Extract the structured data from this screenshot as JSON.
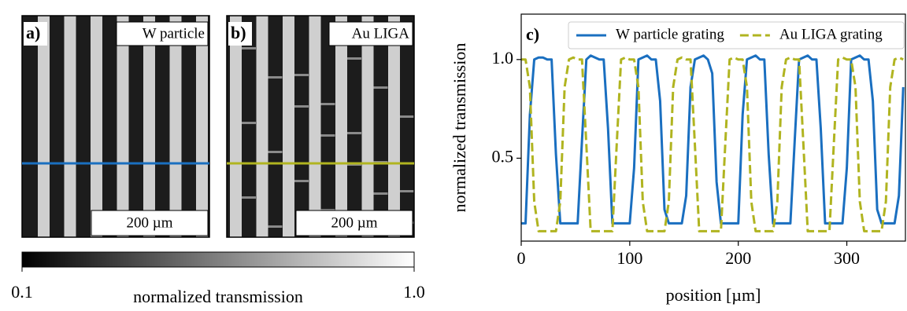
{
  "panels": [
    {
      "label": "a)",
      "name": "W particle",
      "scalebar": "200 µm"
    },
    {
      "label": "b)",
      "name": "Au LIGA",
      "scalebar": "200 µm"
    }
  ],
  "colorbar": {
    "label": "normalized transmission",
    "lim": [
      0.1,
      1
    ],
    "ticks": [
      {
        "value": 0.1,
        "label": "0.1"
      },
      {
        "value": 1,
        "label": "1.0"
      }
    ]
  },
  "chart_data": {
    "type": "line",
    "panel_label": "c)",
    "xlabel": "position [µm]",
    "ylabel": "normalized transmission",
    "xlim": [
      0,
      354
    ],
    "ylim": [
      0.08,
      1.23
    ],
    "xticks": [
      0,
      100,
      200,
      300
    ],
    "yticks": [
      0.5,
      {
        "value": 1,
        "label": "1.0"
      }
    ],
    "legend": "upper right",
    "x": [
      0,
      4,
      8,
      12,
      16,
      20,
      24,
      28,
      32,
      36,
      40,
      44,
      48,
      52,
      56,
      60,
      64,
      68,
      72,
      76,
      80,
      84,
      88,
      92,
      96,
      100,
      104,
      108,
      112,
      116,
      120,
      124,
      128,
      132,
      136,
      140,
      144,
      148,
      152,
      156,
      160,
      164,
      168,
      172,
      176,
      180,
      184,
      188,
      192,
      196,
      200,
      204,
      208,
      212,
      216,
      220,
      224,
      228,
      232,
      236,
      240,
      244,
      248,
      252,
      256,
      260,
      264,
      268,
      272,
      276,
      280,
      284,
      288,
      292,
      296,
      300,
      304,
      308,
      312,
      316,
      320,
      324,
      328,
      332,
      336,
      340,
      344,
      348,
      352
    ],
    "series": [
      {
        "name": "W particle grating",
        "color": "#1a6fc0",
        "linestyle": "solid",
        "values": [
          0.17,
          0.17,
          0.72,
          1.0,
          1.01,
          1.01,
          1.0,
          1.0,
          0.52,
          0.17,
          0.17,
          0.17,
          0.17,
          0.17,
          0.59,
          1.0,
          1.02,
          1.01,
          1.0,
          1.0,
          0.65,
          0.17,
          0.17,
          0.17,
          0.17,
          0.17,
          0.45,
          1.0,
          1.01,
          1.02,
          1.0,
          1.0,
          0.79,
          0.24,
          0.17,
          0.17,
          0.17,
          0.17,
          0.31,
          0.86,
          1.0,
          1.01,
          1.02,
          1.0,
          0.93,
          0.38,
          0.17,
          0.17,
          0.17,
          0.17,
          0.17,
          0.72,
          1.0,
          1.01,
          1.02,
          1.0,
          1.0,
          0.52,
          0.17,
          0.17,
          0.17,
          0.17,
          0.17,
          0.59,
          1.0,
          1.01,
          1.02,
          1.0,
          1.0,
          0.65,
          0.17,
          0.17,
          0.17,
          0.17,
          0.17,
          0.45,
          1.0,
          1.01,
          1.02,
          1.0,
          1.0,
          0.79,
          0.24,
          0.17,
          0.17,
          0.17,
          0.17,
          0.31,
          0.86
        ]
      },
      {
        "name": "Au LIGA grating",
        "color": "#b0b420",
        "linestyle": "dashed",
        "values": [
          1.0,
          1.0,
          0.86,
          0.28,
          0.13,
          0.13,
          0.13,
          0.13,
          0.13,
          0.28,
          0.86,
          1.0,
          1.01,
          1.0,
          1.0,
          0.57,
          0.13,
          0.13,
          0.13,
          0.13,
          0.13,
          0.13,
          0.57,
          1.0,
          1.01,
          1.0,
          1.0,
          0.86,
          0.28,
          0.13,
          0.13,
          0.13,
          0.13,
          0.13,
          0.28,
          0.86,
          1.0,
          1.01,
          1.0,
          1.0,
          0.57,
          0.13,
          0.13,
          0.13,
          0.13,
          0.13,
          0.13,
          0.57,
          1.0,
          1.01,
          1.0,
          1.0,
          0.86,
          0.28,
          0.13,
          0.13,
          0.13,
          0.13,
          0.13,
          0.28,
          0.86,
          1.0,
          1.01,
          1.0,
          1.0,
          0.57,
          0.13,
          0.13,
          0.13,
          0.13,
          0.13,
          0.13,
          0.57,
          1.0,
          1.01,
          1.0,
          1.0,
          0.86,
          0.28,
          0.13,
          0.13,
          0.13,
          0.13,
          0.13,
          0.28,
          0.86,
          1.0,
          1.01,
          1.0
        ]
      }
    ]
  }
}
